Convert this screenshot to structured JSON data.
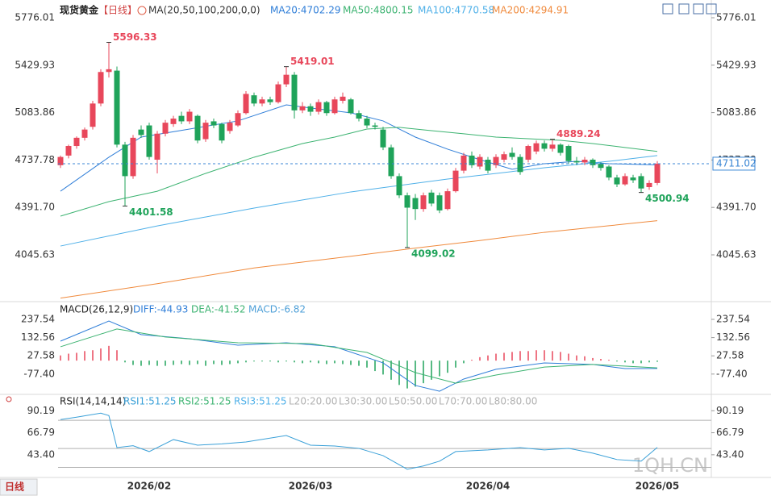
{
  "chart_data": [
    {
      "type": "candlestick",
      "title": "现货黄金",
      "period": "【日线】",
      "indicator": "MA(20,50,100,200,0,0)",
      "categories": [
        null,
        null,
        null,
        null,
        null,
        null,
        null,
        null,
        null,
        null,
        null,
        "2026/02",
        null,
        null,
        null,
        null,
        null,
        null,
        null,
        null,
        null,
        null,
        null,
        null,
        null,
        null,
        null,
        null,
        null,
        null,
        null,
        "2026/03",
        null,
        null,
        null,
        null,
        null,
        null,
        null,
        null,
        null,
        null,
        null,
        null,
        null,
        null,
        null,
        null,
        null,
        null,
        null,
        null,
        null,
        "2026/04",
        null,
        null,
        null,
        null,
        null,
        null,
        null,
        null,
        null,
        null,
        null,
        null,
        null,
        null,
        null,
        null,
        null,
        null,
        null,
        null,
        "2026/05"
      ],
      "open": [
        4700,
        4770,
        4840,
        4900,
        4980,
        5150,
        5380,
        5390,
        4850,
        4620,
        4960,
        4990,
        4740,
        4930,
        5000,
        5060,
        5020,
        5060,
        4890,
        5020,
        5000,
        4950,
        4990,
        5080,
        5210,
        5150,
        5180,
        5160,
        5290,
        5360,
        5100,
        5130,
        5090,
        5160,
        5080,
        5170,
        5180,
        5080,
        5040,
        4990,
        4960,
        4830,
        4620,
        4480,
        4460,
        4380,
        4500,
        4480,
        4380,
        4510,
        4660,
        4770,
        4690,
        4740,
        4700,
        4740,
        4790,
        4760,
        4740,
        4800,
        4860,
        4820,
        4850,
        4840,
        4730,
        4720,
        4740,
        4710,
        4690,
        4610,
        4560,
        4610,
        4620,
        4540,
        4570
      ],
      "high": [
        4770,
        4850,
        4910,
        4975,
        5170,
        5400,
        5596.33,
        5420,
        4870,
        4920,
        4990,
        5010,
        4950,
        5030,
        5060,
        5090,
        5110,
        5070,
        5030,
        5040,
        5010,
        5030,
        5100,
        5240,
        5230,
        5200,
        5200,
        5310,
        5419.01,
        5380,
        5160,
        5150,
        5180,
        5170,
        5200,
        5230,
        5190,
        5100,
        5060,
        5010,
        4980,
        4850,
        4640,
        4500,
        4490,
        4500,
        4520,
        4500,
        4530,
        4680,
        4790,
        4800,
        4780,
        4760,
        4780,
        4800,
        4830,
        4780,
        4850,
        4880,
        4880,
        4889.24,
        4860,
        4850,
        4760,
        4760,
        4750,
        4720,
        4700,
        4630,
        4640,
        4630,
        4640,
        4590,
        4730
      ],
      "low": [
        4680,
        4750,
        4820,
        4880,
        4960,
        5130,
        5340,
        4830,
        4401.58,
        4600,
        4900,
        4740,
        4640,
        4910,
        4980,
        5000,
        5000,
        4860,
        4870,
        4970,
        4860,
        4930,
        4980,
        5070,
        5130,
        5130,
        5140,
        5150,
        5270,
        5040,
        5080,
        5060,
        5070,
        5060,
        5070,
        5150,
        5070,
        5020,
        4970,
        4960,
        4810,
        4600,
        4460,
        4099.02,
        4300,
        4360,
        4400,
        4350,
        4370,
        4500,
        4640,
        4680,
        4670,
        4640,
        4680,
        4720,
        4740,
        4630,
        4720,
        4780,
        4800,
        4800,
        4770,
        4710,
        4700,
        4700,
        4680,
        4660,
        4590,
        4540,
        4550,
        4570,
        4500.94,
        4520,
        4555
      ],
      "close": [
        4760,
        4840,
        4900,
        4960,
        5150,
        5380,
        5400,
        4850,
        4620,
        4900,
        4920,
        4760,
        4930,
        5010,
        5040,
        5020,
        5090,
        4880,
        5010,
        4990,
        4880,
        5010,
        5080,
        5220,
        5150,
        5180,
        5160,
        5290,
        5360,
        5100,
        5130,
        5090,
        5160,
        5080,
        5180,
        5200,
        5080,
        5040,
        4990,
        4980,
        4830,
        4620,
        4480,
        4390,
        4380,
        4480,
        4420,
        4370,
        4510,
        4660,
        4770,
        4700,
        4760,
        4660,
        4760,
        4780,
        4760,
        4650,
        4840,
        4860,
        4820,
        4850,
        4790,
        4730,
        4720,
        4740,
        4700,
        4680,
        4610,
        4560,
        4620,
        4590,
        4530,
        4570,
        4711.02
      ],
      "high_labels": [
        null,
        null,
        null,
        null,
        null,
        null,
        "5596.33",
        null,
        null,
        null,
        null,
        null,
        null,
        null,
        null,
        null,
        null,
        null,
        null,
        null,
        null,
        null,
        null,
        null,
        null,
        null,
        null,
        null,
        "5419.01",
        null,
        null,
        null,
        null,
        null,
        null,
        null,
        null,
        null,
        null,
        null,
        null,
        null,
        null,
        null,
        null,
        null,
        null,
        null,
        null,
        null,
        null,
        null,
        null,
        null,
        null,
        null,
        null,
        null,
        null,
        null,
        null,
        "4889.24",
        null,
        null,
        null,
        null,
        null,
        null,
        null,
        null,
        null,
        null,
        null,
        null,
        null
      ],
      "low_labels": [
        null,
        null,
        null,
        null,
        null,
        null,
        null,
        null,
        "4401.58",
        null,
        null,
        null,
        null,
        null,
        null,
        null,
        null,
        null,
        null,
        null,
        null,
        null,
        null,
        null,
        null,
        null,
        null,
        null,
        null,
        null,
        null,
        null,
        null,
        null,
        null,
        null,
        null,
        null,
        null,
        null,
        null,
        null,
        null,
        "4099.02",
        null,
        null,
        null,
        null,
        null,
        null,
        null,
        null,
        null,
        null,
        null,
        null,
        null,
        null,
        null,
        null,
        null,
        null,
        null,
        null,
        null,
        null,
        null,
        null,
        null,
        null,
        null,
        null,
        "4500.94",
        null,
        null
      ],
      "up_color": "#e8475b",
      "down_color": "#1fa35a",
      "price_line_color": "#3a86d4",
      "ylim": [
        3716,
        5876
      ],
      "yticks": [
        5776.01,
        5429.93,
        5083.86,
        4737.78,
        {
          "value": 4391.7,
          "label": "4391.70"
        },
        4045.63
      ],
      "series": [
        {
          "name": "MA20:4702.29",
          "color": "#2f7ed8",
          "x": [
            0,
            6,
            10,
            16,
            22,
            28,
            32,
            36,
            40,
            44,
            48,
            52,
            56,
            60,
            64,
            68,
            74
          ],
          "values": [
            4510,
            4758,
            4905,
            4964,
            5023,
            5140,
            5110,
            5082,
            5023,
            4905,
            4817,
            4740,
            4670,
            4711,
            4728,
            4711,
            4702.29
          ]
        },
        {
          "name": "MA50:4800.15",
          "color": "#3cb371",
          "x": [
            0,
            6,
            12,
            18,
            24,
            30,
            34,
            38,
            42,
            46,
            50,
            54,
            58,
            62,
            66,
            70,
            74
          ],
          "values": [
            4328,
            4434,
            4510,
            4640,
            4758,
            4858,
            4905,
            4964,
            4976,
            4952,
            4929,
            4905,
            4893,
            4881,
            4858,
            4829,
            4800.15
          ]
        },
        {
          "name": "MA100:4770.58",
          "color": "#4fb0e8",
          "x": [
            0,
            12,
            24,
            36,
            48,
            60,
            68,
            74
          ],
          "values": [
            4110,
            4257,
            4387,
            4505,
            4599,
            4681,
            4728,
            4770.58
          ]
        },
        {
          "name": "MA200:4294.91",
          "color": "#f08a3c",
          "x": [
            0,
            12,
            24,
            36,
            44,
            52,
            60,
            68,
            74
          ],
          "values": [
            3730,
            3835,
            3950,
            4035,
            4095,
            4150,
            4210,
            4258,
            4294.91
          ]
        }
      ]
    },
    {
      "type": "macd",
      "title": "MACD(26,12,9)",
      "ylim": [
        -185,
        321
      ],
      "yticks": [
        237.54,
        132.56,
        27.58,
        {
          "value": -77.4,
          "label": "-77.40"
        }
      ],
      "series": [
        {
          "name": "DIFF:-44.93",
          "color": "#2f7ed8",
          "x": [
            0,
            6,
            10,
            16,
            22,
            28,
            34,
            40,
            44,
            47,
            50,
            54,
            60,
            66,
            70,
            74
          ],
          "values": [
            112,
            228,
            150,
            126,
            89,
            103,
            80,
            -13,
            -143,
            -176,
            -106,
            -50,
            -13,
            -22,
            -46,
            -44.93
          ]
        },
        {
          "name": "DEA:-41.52",
          "color": "#3cb371",
          "x": [
            0,
            7,
            13,
            22,
            31,
            38,
            44,
            49,
            54,
            60,
            66,
            74
          ],
          "values": [
            80,
            182,
            136,
            103,
            98,
            47,
            -69,
            -130,
            -83,
            -37,
            -22,
            -41.52
          ]
        }
      ],
      "histogram": {
        "name": "MACD:-6.82",
        "color": "#e8475b",
        "negative_color": "#1fa35a",
        "legend_color": "#4fa0d8",
        "values": [
          30,
          40,
          45,
          55,
          60,
          70,
          85,
          60,
          -10,
          -25,
          -30,
          -25,
          -30,
          -30,
          -25,
          -20,
          -25,
          -20,
          -30,
          -20,
          -25,
          -20,
          -15,
          -10,
          -5,
          -5,
          -5,
          -10,
          -5,
          -10,
          -15,
          -10,
          -15,
          -20,
          -15,
          -20,
          -25,
          -30,
          -40,
          -60,
          -80,
          -110,
          -140,
          -160,
          -150,
          -130,
          -110,
          -90,
          -70,
          -40,
          -15,
          5,
          20,
          30,
          40,
          45,
          50,
          55,
          55,
          60,
          60,
          55,
          50,
          40,
          30,
          25,
          15,
          10,
          5,
          -5,
          -10,
          -15,
          -15,
          -10,
          -6.82
        ]
      }
    },
    {
      "type": "line",
      "title": "RSI(14,14,14)",
      "ylim": [
        21,
        105
      ],
      "yticks": [
        90.19,
        66.79,
        {
          "value": 43.4,
          "label": "43.40"
        }
      ],
      "series": [
        {
          "name": "RSI1:51.25",
          "color": "#3aa0d8",
          "x": [
            0,
            2,
            5,
            6,
            7,
            9,
            11,
            14,
            17,
            20,
            23,
            28,
            31,
            34,
            37,
            40,
            43,
            45,
            47,
            49,
            53,
            57,
            60,
            63,
            66,
            69,
            72,
            74
          ],
          "values": [
            80.8,
            83.4,
            87.6,
            85,
            51,
            53,
            46.8,
            59.5,
            53.6,
            55,
            57,
            63.8,
            53.6,
            52.7,
            50.2,
            42.5,
            28,
            31.5,
            36.6,
            46.8,
            48.5,
            51,
            48.5,
            50.2,
            45.1,
            38.3,
            36.6,
            51.25
          ]
        }
      ],
      "legend": [
        {
          "name": "RSI2:51.25",
          "color": "#3cb371"
        },
        {
          "name": "RSI3:51.25",
          "color": "#4fb0e8"
        }
      ],
      "levels": [
        {
          "value": 20,
          "label": "L20:20.00",
          "drawn": false
        },
        {
          "value": 30,
          "label": "L30:30.00",
          "drawn": true
        },
        {
          "value": 50,
          "label": "L50:50.00",
          "drawn": true
        },
        {
          "value": 70,
          "label": "L70:70.00",
          "drawn": false
        },
        {
          "value": 80,
          "label": "L80:80.00",
          "drawn": true
        }
      ],
      "level_color": "#b0b0b0"
    }
  ],
  "watermark": "1QH.CN",
  "period_button": "日线"
}
